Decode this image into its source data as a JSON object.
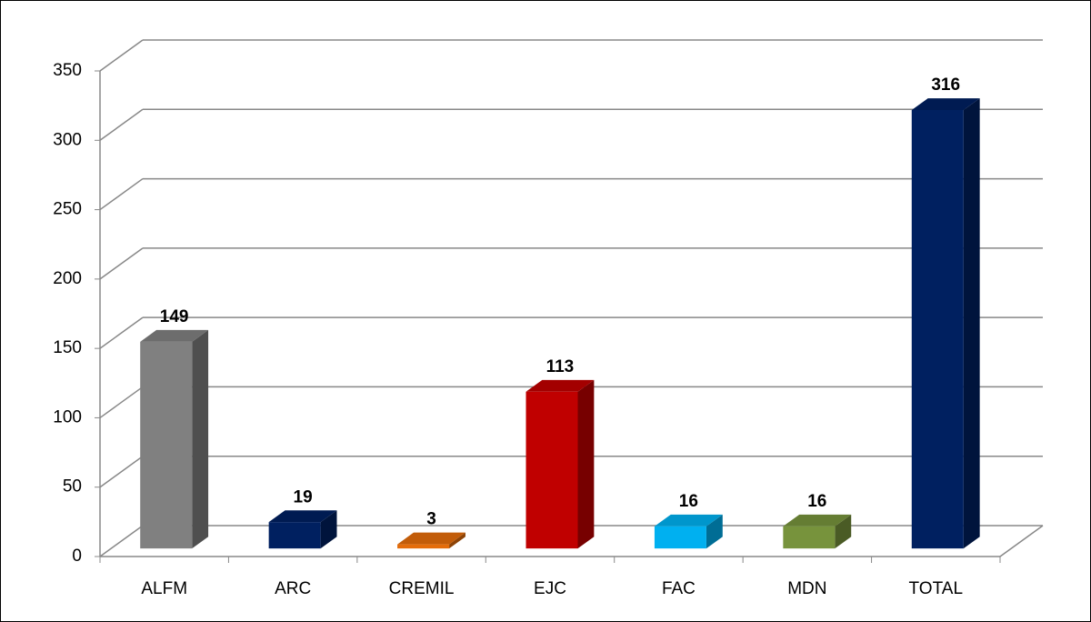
{
  "chart_data": {
    "type": "bar",
    "categories": [
      "ALFM",
      "ARC",
      "CREMIL",
      "EJC",
      "FAC",
      "MDN",
      "TOTAL"
    ],
    "values": [
      149,
      19,
      3,
      113,
      16,
      16,
      316
    ],
    "colors": [
      "#808080",
      "#002060",
      "#e46c0a",
      "#c00000",
      "#00b0f0",
      "#77933c",
      "#002060"
    ],
    "ylim": [
      0,
      350
    ],
    "yticks": [
      0,
      50,
      100,
      150,
      200,
      250,
      300,
      350
    ],
    "grid": true
  }
}
